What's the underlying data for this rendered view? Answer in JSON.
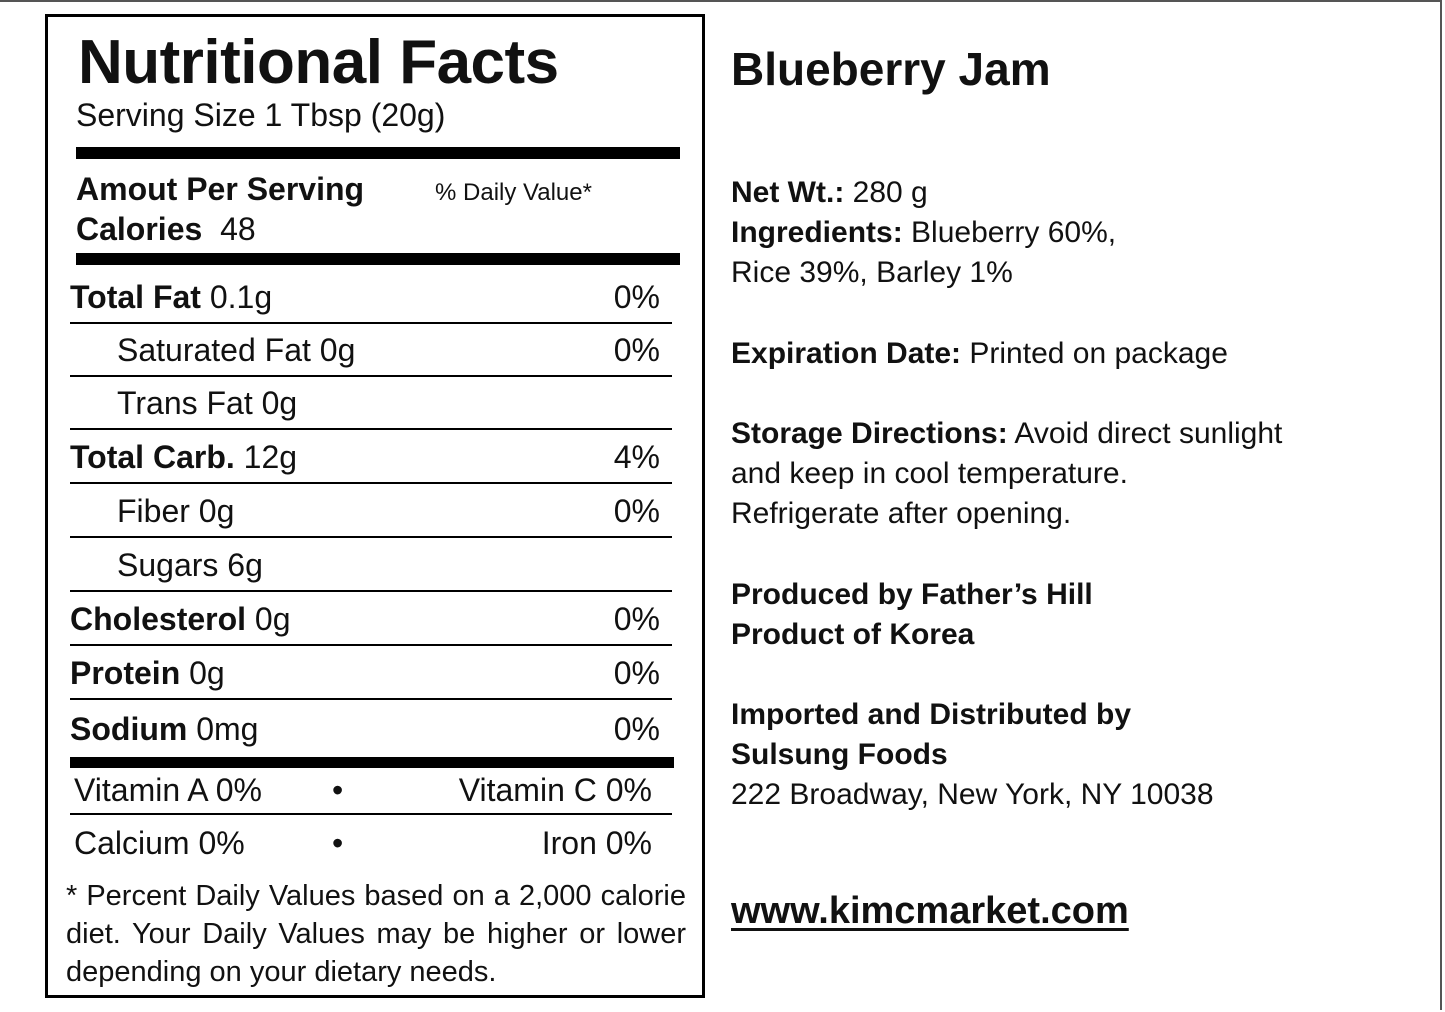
{
  "nutrition": {
    "title": "Nutritional Facts",
    "serving_size": "Serving Size 1 Tbsp (20g)",
    "amount_per_serving": "Amout Per Serving",
    "daily_value_header": "% Daily Value*",
    "calories_label": "Calories",
    "calories_value": "48",
    "rows": [
      {
        "name": "Total Fat",
        "amount": "0.1g",
        "dv": "0%"
      },
      {
        "name": "Saturated Fat",
        "amount": "0g",
        "dv": "0%"
      },
      {
        "name": "Trans Fat",
        "amount": "0g",
        "dv": ""
      },
      {
        "name": "Total Carb.",
        "amount": "12g",
        "dv": "4%"
      },
      {
        "name": "Fiber",
        "amount": "0g",
        "dv": "0%"
      },
      {
        "name": "Sugars",
        "amount": "6g",
        "dv": ""
      },
      {
        "name": "Cholesterol",
        "amount": "0g",
        "dv": "0%"
      },
      {
        "name": "Protein",
        "amount": "0g",
        "dv": "0%"
      },
      {
        "name": "Sodium",
        "amount": "0mg",
        "dv": "0%"
      }
    ],
    "vitamins": [
      {
        "left": "Vitamin A 0%",
        "separator": "•",
        "right": "Vitamin C 0%"
      },
      {
        "left": "Calcium 0%",
        "separator": "•",
        "right": "Iron 0%"
      }
    ],
    "footnote": "* Percent Daily Values based on a 2,000 calorie diet. Your Daily Values may be higher or lower depending on your dietary needs."
  },
  "product": {
    "name": "Blueberry Jam",
    "net_wt_label": "Net Wt.:",
    "net_wt_value": " 280 g",
    "ingredients_label": "Ingredients:",
    "ingredients_line1": " Blueberry 60%,",
    "ingredients_line2": "Rice 39%, Barley 1%",
    "expiration_label": "Expiration Date:",
    "expiration_value": " Printed on package",
    "storage_label": "Storage Directions:",
    "storage_line1": " Avoid direct sunlight",
    "storage_line2": "and keep in cool temperature.",
    "storage_line3": "Refrigerate after opening.",
    "produced_by": "Produced by Father’s Hill",
    "product_of": "Product of Korea",
    "imported_by": "Imported and Distributed by",
    "distributor": "Sulsung Foods",
    "address": "222 Broadway, New York, NY 10038",
    "website": "www.kimcmarket.com"
  }
}
